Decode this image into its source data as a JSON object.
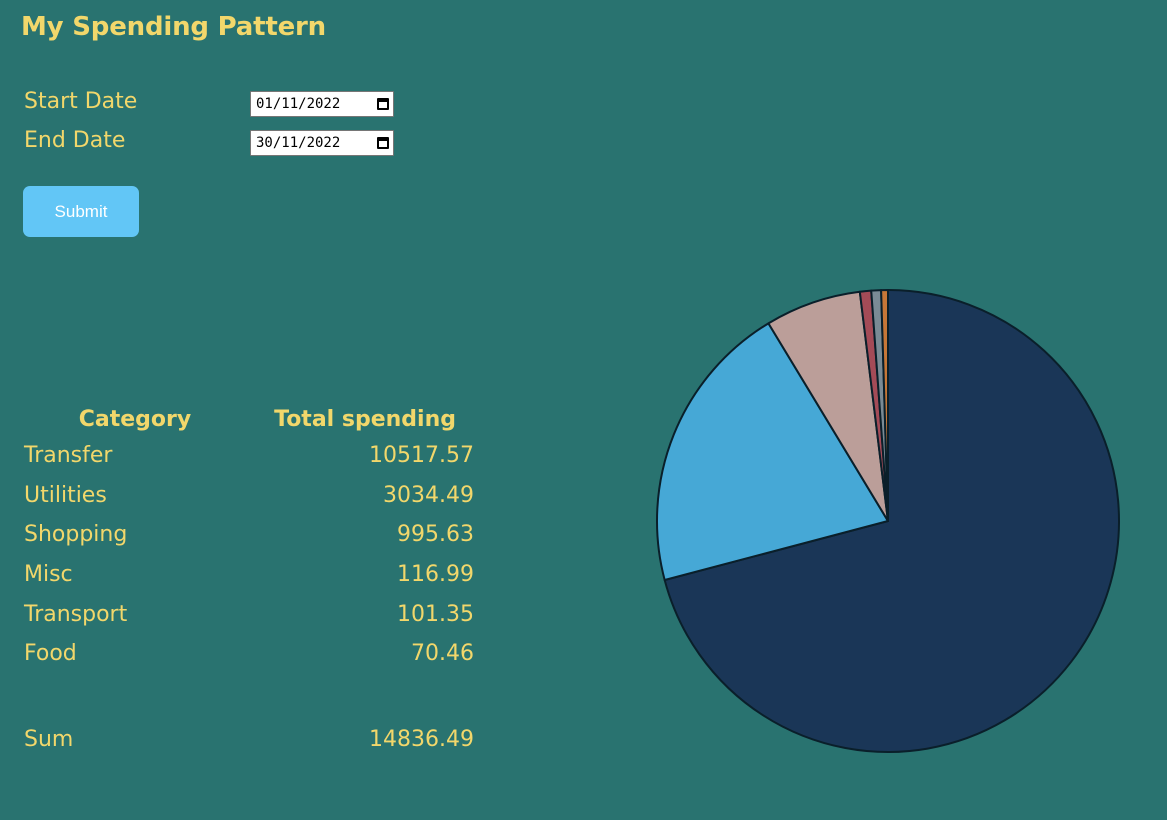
{
  "header": {
    "title": "My Spending Pattern"
  },
  "form": {
    "start_label": "Start Date",
    "start_value": "01/11/2022",
    "end_label": "End Date",
    "end_value": "30/11/2022",
    "submit_label": "Submit"
  },
  "table": {
    "category_header": "Category",
    "total_header": "Total spending",
    "rows": [
      {
        "category": "Transfer",
        "total": "10517.57"
      },
      {
        "category": "Utilities",
        "total": "3034.49"
      },
      {
        "category": "Shopping",
        "total": "995.63"
      },
      {
        "category": "Misc",
        "total": "116.99"
      },
      {
        "category": "Transport",
        "total": "101.35"
      },
      {
        "category": "Food",
        "total": "70.46"
      }
    ],
    "sum_label": "Sum",
    "sum_value": "14836.49"
  },
  "colors": {
    "background": "#297370",
    "text": "#F2D76B",
    "button": "#62C6F6"
  },
  "chart_data": {
    "type": "pie",
    "categories": [
      "Transfer",
      "Utilities",
      "Shopping",
      "Misc",
      "Transport",
      "Food"
    ],
    "values": [
      10517.57,
      3034.49,
      995.63,
      116.99,
      101.35,
      70.46
    ],
    "colors": [
      "#1A3657",
      "#46A8D6",
      "#BB9E99",
      "#A44B57",
      "#7A8B95",
      "#C67737"
    ],
    "title": "",
    "legend": "none"
  }
}
